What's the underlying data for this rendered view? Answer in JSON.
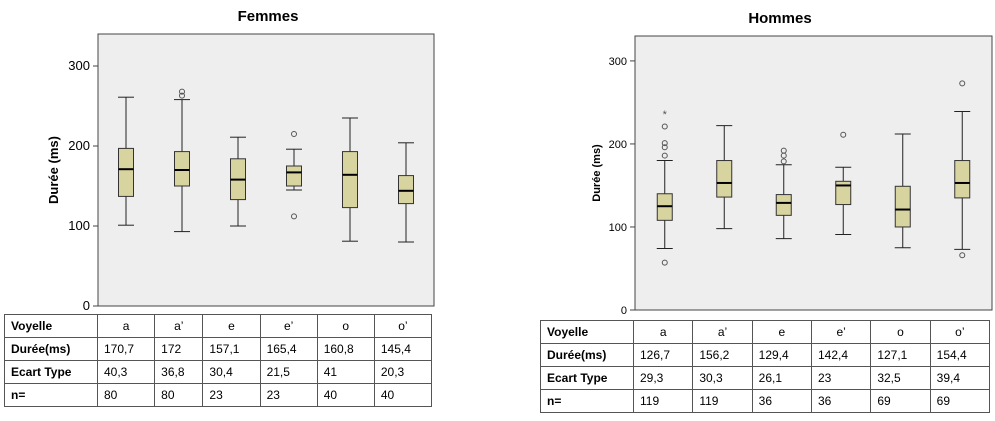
{
  "chart_data": [
    {
      "type": "boxplot",
      "title": "Femmes",
      "ylabel": "Durée (ms)",
      "xlabel": "",
      "ylim": [
        0,
        340
      ],
      "yticks": [
        0,
        100,
        200,
        300
      ],
      "grid": false,
      "box_color": "#d8d4a0",
      "background": "#eeeeee",
      "categories": [
        "a",
        "a’",
        "e",
        "e’",
        "o",
        "o’"
      ],
      "boxes": [
        {
          "category": "a",
          "whisker_low": 101,
          "q1": 137,
          "median": 171,
          "q3": 197,
          "whisker_high": 261,
          "outliers": [],
          "extremes": []
        },
        {
          "category": "a’",
          "whisker_low": 93,
          "q1": 150,
          "median": 170,
          "q3": 193,
          "whisker_high": 258,
          "outliers": [
            263,
            268
          ],
          "extremes": []
        },
        {
          "category": "e",
          "whisker_low": 100,
          "q1": 133,
          "median": 158,
          "q3": 184,
          "whisker_high": 211,
          "outliers": [],
          "extremes": []
        },
        {
          "category": "e’",
          "whisker_low": 145,
          "q1": 150,
          "median": 167,
          "q3": 175,
          "whisker_high": 196,
          "outliers": [
            215,
            112
          ],
          "extremes": []
        },
        {
          "category": "o",
          "whisker_low": 81,
          "q1": 123,
          "median": 164,
          "q3": 193,
          "whisker_high": 235,
          "outliers": [],
          "extremes": []
        },
        {
          "category": "o’",
          "whisker_low": 80,
          "q1": 128,
          "median": 144,
          "q3": 163,
          "whisker_high": 204,
          "outliers": [],
          "extremes": []
        }
      ]
    },
    {
      "type": "boxplot",
      "title": "Hommes",
      "ylabel": "Durée (ms)",
      "xlabel": "",
      "ylim": [
        0,
        330
      ],
      "yticks": [
        0,
        100,
        200,
        300
      ],
      "grid": false,
      "box_color": "#d8d4a0",
      "background": "#eeeeee",
      "categories": [
        "a",
        "a’",
        "e",
        "e’",
        "o",
        "o’"
      ],
      "boxes": [
        {
          "category": "a",
          "whisker_low": 74,
          "q1": 108,
          "median": 125,
          "q3": 140,
          "whisker_high": 180,
          "outliers": [
            186,
            196,
            201,
            221,
            57
          ],
          "extremes": [
            237
          ]
        },
        {
          "category": "a’",
          "whisker_low": 98,
          "q1": 136,
          "median": 153,
          "q3": 180,
          "whisker_high": 222,
          "outliers": [],
          "extremes": []
        },
        {
          "category": "e",
          "whisker_low": 86,
          "q1": 114,
          "median": 129,
          "q3": 139,
          "whisker_high": 175,
          "outliers": [
            179,
            186,
            192
          ],
          "extremes": []
        },
        {
          "category": "e’",
          "whisker_low": 91,
          "q1": 127,
          "median": 150,
          "q3": 155,
          "whisker_high": 172,
          "outliers": [
            211
          ],
          "extremes": []
        },
        {
          "category": "o",
          "whisker_low": 75,
          "q1": 100,
          "median": 121,
          "q3": 149,
          "whisker_high": 212,
          "outliers": [],
          "extremes": []
        },
        {
          "category": "o’",
          "whisker_low": 73,
          "q1": 135,
          "median": 153,
          "q3": 180,
          "whisker_high": 239,
          "outliers": [
            273,
            66
          ],
          "extremes": []
        }
      ]
    }
  ],
  "tables": {
    "femmes": {
      "header": [
        "Voyelle",
        "a",
        "a’",
        "e",
        "e’",
        "o",
        "o’"
      ],
      "rows": [
        [
          "Durée(ms)",
          "170,7",
          "172",
          "157,1",
          "165,4",
          "160,8",
          "145,4"
        ],
        [
          "Ecart Type",
          "40,3",
          "36,8",
          "30,4",
          "21,5",
          "41",
          "20,3"
        ],
        [
          "n=",
          "80",
          "80",
          "23",
          "23",
          "40",
          "40"
        ]
      ]
    },
    "hommes": {
      "header": [
        "Voyelle",
        "a",
        "a’",
        "e",
        "e’",
        "o",
        "o’"
      ],
      "rows": [
        [
          "Durée(ms)",
          "126,7",
          "156,2",
          "129,4",
          "142,4",
          "127,1",
          "154,4"
        ],
        [
          "Ecart Type",
          "29,3",
          "30,3",
          "26,1",
          "23",
          "32,5",
          "39,4"
        ],
        [
          "n=",
          "119",
          "119",
          "36",
          "36",
          "69",
          "69"
        ]
      ]
    }
  }
}
